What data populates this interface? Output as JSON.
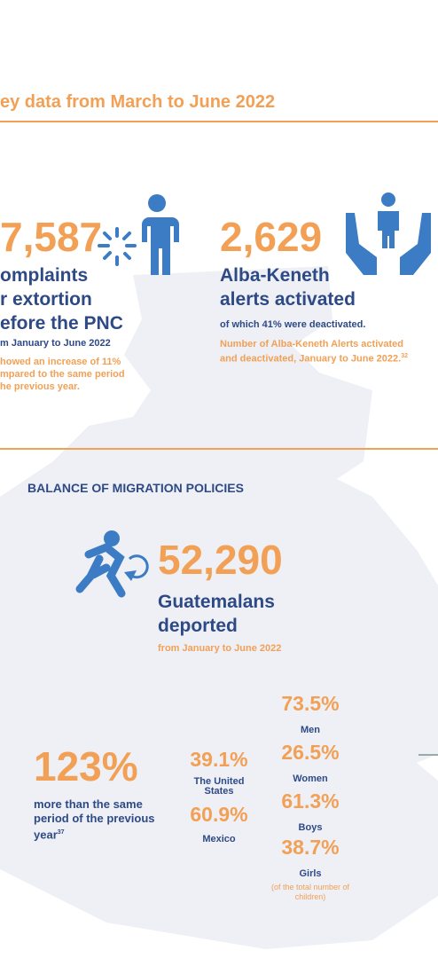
{
  "header": {
    "title": "ey data from March to June 2022"
  },
  "extortion": {
    "number": "7,587",
    "lines": [
      "omplaints",
      "r extortion",
      "efore the PNC"
    ],
    "period": "m January to June 2022",
    "note": [
      "howed an increase of 11%",
      "mpared to the same period",
      "he previous year."
    ]
  },
  "alerts": {
    "number": "2,629",
    "lines": [
      "Alba-Keneth",
      "alerts activated"
    ],
    "detail": "of which 41% were deactivated.",
    "note": [
      "Number of Alba-Keneth Alerts activated",
      "and deactivated, January to June 2022."
    ],
    "footnote": "32"
  },
  "migration": {
    "heading": "BALANCE OF MIGRATION POLICIES",
    "number": "52,290",
    "lines": [
      "Guatemalans",
      "deported"
    ],
    "period": "from January to June 2022"
  },
  "increase": {
    "value": "123%",
    "lines": [
      "more than the same",
      "period of the previous",
      "year"
    ],
    "footnote": "37"
  },
  "countries": [
    {
      "value": "39.1%",
      "label": "The United States"
    },
    {
      "value": "60.9%",
      "label": "Mexico"
    }
  ],
  "demographics": [
    {
      "value": "73.5%",
      "label": "Men"
    },
    {
      "value": "26.5%",
      "label": "Women"
    },
    {
      "value": "61.3%",
      "label": "Boys"
    },
    {
      "value": "38.7%",
      "label": "Girls"
    }
  ],
  "demographics_note": "(of the total number of children)"
}
